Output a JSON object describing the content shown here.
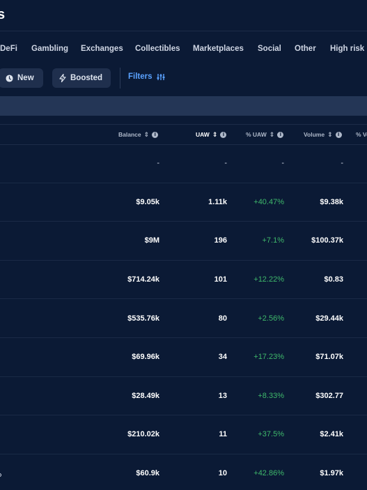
{
  "header": {
    "title_fragment": "s"
  },
  "categories": [
    "DeFi",
    "Gambling",
    "Exchanges",
    "Collectibles",
    "Marketplaces",
    "Social",
    "Other",
    "High risk"
  ],
  "toolbar": {
    "new_label": "New",
    "boosted_label": "Boosted",
    "filters_label": "Filters"
  },
  "table": {
    "columns": [
      "Balance",
      "UAW",
      "% UAW",
      "Volume",
      "% Vo"
    ],
    "active_sort_column": "UAW",
    "rows": [
      {
        "balance": "-",
        "uaw": "-",
        "uaw_pct": "-",
        "volume": "-"
      },
      {
        "balance": "$9.05k",
        "uaw": "1.11k",
        "uaw_pct": "+40.47%",
        "volume": "$9.38k"
      },
      {
        "balance": "$9M",
        "uaw": "196",
        "uaw_pct": "+7.1%",
        "volume": "$100.37k"
      },
      {
        "balance": "$714.24k",
        "uaw": "101",
        "uaw_pct": "+12.22%",
        "volume": "$0.83"
      },
      {
        "balance": "$535.76k",
        "uaw": "80",
        "uaw_pct": "+2.56%",
        "volume": "$29.44k"
      },
      {
        "balance": "$69.96k",
        "uaw": "34",
        "uaw_pct": "+17.23%",
        "volume": "$71.07k"
      },
      {
        "balance": "$28.49k",
        "uaw": "13",
        "uaw_pct": "+8.33%",
        "volume": "$302.77"
      },
      {
        "balance": "$210.02k",
        "uaw": "11",
        "uaw_pct": "+37.5%",
        "volume": "$2.41k"
      },
      {
        "balance": "$60.9k",
        "uaw": "10",
        "uaw_pct": "+42.86%",
        "volume": "$1.97k"
      }
    ]
  },
  "colors": {
    "background": "#0b1a35",
    "accent": "#5aa2ff",
    "positive": "#3fb96b",
    "pill": "#1f2f4d"
  },
  "icons": {
    "new": "clock-icon",
    "boosted": "lightning-icon",
    "filters": "sliders-icon",
    "sort": "sort-icon",
    "info": "info-icon"
  }
}
